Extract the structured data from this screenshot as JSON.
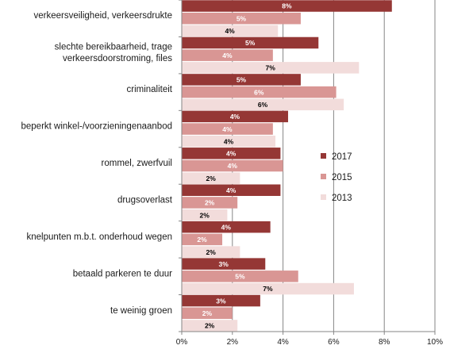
{
  "chart_data": {
    "type": "bar",
    "orientation": "horizontal",
    "categories": [
      "verkeersveiligheid, verkeersdrukte",
      "slechte bereikbaarheid, trage verkeersdoorstroming, files",
      "criminaliteit",
      "beperkt winkel-/voorzieningenaanbod",
      "rommel, zwerfvuil",
      "drugsoverlast",
      "knelpunten m.b.t. onderhoud wegen",
      "betaald parkeren te duur",
      "te weinig groen"
    ],
    "category_lines": [
      [
        "verkeersveiligheid, verkeersdrukte"
      ],
      [
        "slechte bereikbaarheid, trage",
        "verkeersdoorstroming, files"
      ],
      [
        "criminaliteit"
      ],
      [
        "beperkt winkel-/voorzieningenaanbod"
      ],
      [
        "rommel, zwerfvuil"
      ],
      [
        "drugsoverlast"
      ],
      [
        "knelpunten m.b.t. onderhoud wegen"
      ],
      [
        "betaald parkeren te duur"
      ],
      [
        "te weinig groen"
      ]
    ],
    "series": [
      {
        "name": "2017",
        "color": "#953735",
        "label_color": "#ffffff",
        "values": [
          8.3,
          5.4,
          4.7,
          4.2,
          3.9,
          3.9,
          3.5,
          3.3,
          3.1
        ],
        "labels": [
          "8%",
          "5%",
          "5%",
          "4%",
          "4%",
          "4%",
          "4%",
          "3%",
          "3%"
        ]
      },
      {
        "name": "2015",
        "color": "#d99694",
        "label_color": "#ffffff",
        "values": [
          4.7,
          3.6,
          6.1,
          3.6,
          4.0,
          2.2,
          1.6,
          4.6,
          2.0
        ],
        "labels": [
          "5%",
          "4%",
          "6%",
          "4%",
          "4%",
          "2%",
          "2%",
          "5%",
          "2%"
        ]
      },
      {
        "name": "2013",
        "color": "#f2dcdb",
        "label_color": "#000000",
        "values": [
          3.8,
          7.0,
          6.4,
          3.7,
          2.3,
          1.8,
          2.3,
          6.8,
          2.2
        ],
        "labels": [
          "4%",
          "7%",
          "6%",
          "4%",
          "2%",
          "2%",
          "2%",
          "7%",
          "2%"
        ]
      }
    ],
    "x_ticks": [
      "0%",
      "2%",
      "4%",
      "6%",
      "8%",
      "10%"
    ],
    "xlim": [
      0,
      10
    ],
    "grid": "vertical",
    "legend": "right",
    "title": "",
    "xlabel": "",
    "ylabel": ""
  }
}
